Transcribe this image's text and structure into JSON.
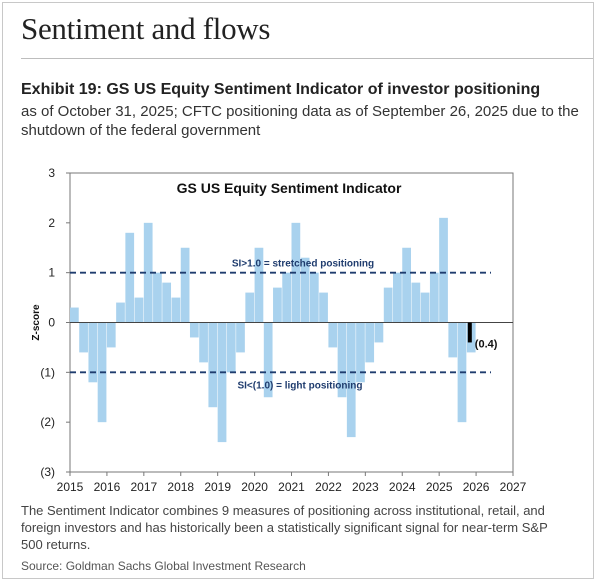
{
  "page": {
    "heading": "Sentiment and flows",
    "exhibit_title": "Exhibit 19: GS US Equity Sentiment Indicator of investor positioning",
    "subtitle_lines": [
      "as of October 31, 2025; CFTC positioning data as of September 26, 2025 due to the",
      "shutdown of the federal government"
    ],
    "footer_lines": [
      "The Sentiment Indicator combines 9 measures of positioning across institutional, retail, and",
      "foreign investors and has historically been a statistically significant signal for near-term S&P",
      "500 returns."
    ],
    "source": "Source: Goldman Sachs Global Investment Research"
  },
  "chart_data": {
    "type": "bar",
    "title": "GS US Equity  Sentiment Indicator",
    "xlabel": "",
    "ylabel": "Z-score",
    "xlim": [
      2015,
      2027
    ],
    "ylim": [
      -3,
      3
    ],
    "x_tick_labels": [
      "2015",
      "2016",
      "2017",
      "2018",
      "2019",
      "2020",
      "2021",
      "2022",
      "2023",
      "2024",
      "2025",
      "2026",
      "2027"
    ],
    "y_ticks": [
      3,
      2,
      1,
      0,
      -1,
      -2,
      -3
    ],
    "y_tick_labels": [
      "3",
      "2",
      "1",
      "0",
      "(1)",
      "(2)",
      "(3)"
    ],
    "grid": false,
    "reference_lines": [
      {
        "y": 1.0,
        "label": "SI>1.0 = stretched positioning",
        "style": "dashed"
      },
      {
        "y": -1.0,
        "label": "SI<(1.0) = light positioning",
        "style": "dashed"
      }
    ],
    "last_value": {
      "x": 2025.83,
      "y": -0.4,
      "label": "(0.4)"
    },
    "colors": {
      "bars": "#a9d2ee",
      "reference_lines": "#1f3c6e",
      "last_bar": "#000000",
      "text": "#1f3c6e"
    },
    "x": [
      2015.0,
      2015.25,
      2015.5,
      2015.75,
      2016.0,
      2016.25,
      2016.5,
      2016.75,
      2017.0,
      2017.25,
      2017.5,
      2017.75,
      2018.0,
      2018.25,
      2018.5,
      2018.75,
      2019.0,
      2019.25,
      2019.5,
      2019.75,
      2020.0,
      2020.25,
      2020.5,
      2020.75,
      2021.0,
      2021.25,
      2021.5,
      2021.75,
      2022.0,
      2022.25,
      2022.5,
      2022.75,
      2023.0,
      2023.25,
      2023.5,
      2023.75,
      2024.0,
      2024.25,
      2024.5,
      2024.75,
      2025.0,
      2025.25,
      2025.5,
      2025.75
    ],
    "values": [
      0.3,
      -0.6,
      -1.2,
      -2.0,
      -0.5,
      0.4,
      1.8,
      0.5,
      2.0,
      1.0,
      0.8,
      0.5,
      1.5,
      -0.3,
      -0.8,
      -1.7,
      -2.4,
      -1.0,
      -0.6,
      0.6,
      1.5,
      -1.5,
      0.7,
      1.0,
      2.0,
      1.3,
      1.0,
      0.6,
      -0.5,
      -1.5,
      -2.3,
      -1.2,
      -0.8,
      -0.4,
      0.7,
      1.0,
      1.5,
      0.8,
      0.6,
      1.0,
      2.1,
      -0.7,
      -2.0,
      -0.6
    ]
  }
}
